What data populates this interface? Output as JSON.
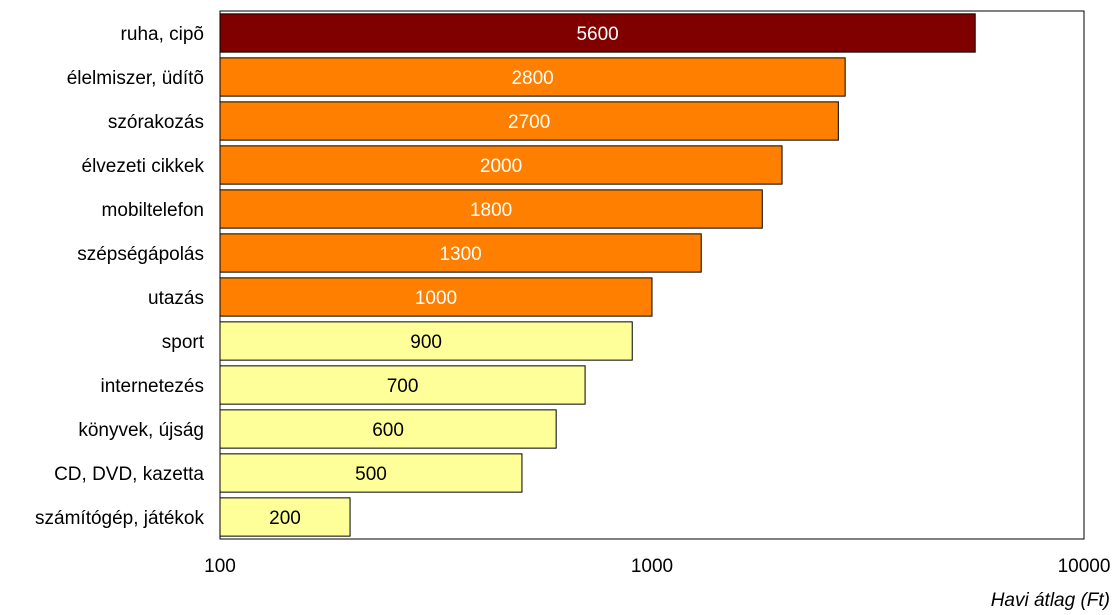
{
  "chart_data": {
    "type": "bar",
    "orientation": "horizontal",
    "categories": [
      "ruha, cipõ",
      "élelmiszer, üdítõ",
      "szórakozás",
      "élvezeti cikkek",
      "mobiltelefon",
      "szépségápolás",
      "utazás",
      "sport",
      "internetezés",
      "könyvek, újság",
      "CD, DVD, kazetta",
      "számítógép, játékok"
    ],
    "values": [
      5600,
      2800,
      2700,
      2000,
      1800,
      1300,
      1000,
      900,
      700,
      600,
      500,
      200
    ],
    "data_labels": [
      "5600",
      "2800",
      "2700",
      "2000",
      "1800",
      "1300",
      "1000",
      "900",
      "700",
      "600",
      "500",
      "200"
    ],
    "bar_colors": [
      "#800000",
      "#FF8000",
      "#FF8000",
      "#FF8000",
      "#FF8000",
      "#FF8000",
      "#FF8000",
      "#FFFF99",
      "#FFFF99",
      "#FFFF99",
      "#FFFF99",
      "#FFFF99"
    ],
    "label_colors": [
      "#ffffff",
      "#ffffff",
      "#ffffff",
      "#ffffff",
      "#ffffff",
      "#ffffff",
      "#ffffff",
      "#000000",
      "#000000",
      "#000000",
      "#000000",
      "#000000"
    ],
    "xscale": "log",
    "xlim": [
      100,
      10000
    ],
    "xticks": [
      "100",
      "1000",
      "10000"
    ],
    "xlabel": "Havi átlag (Ft)",
    "grid": false,
    "legend": "none"
  }
}
